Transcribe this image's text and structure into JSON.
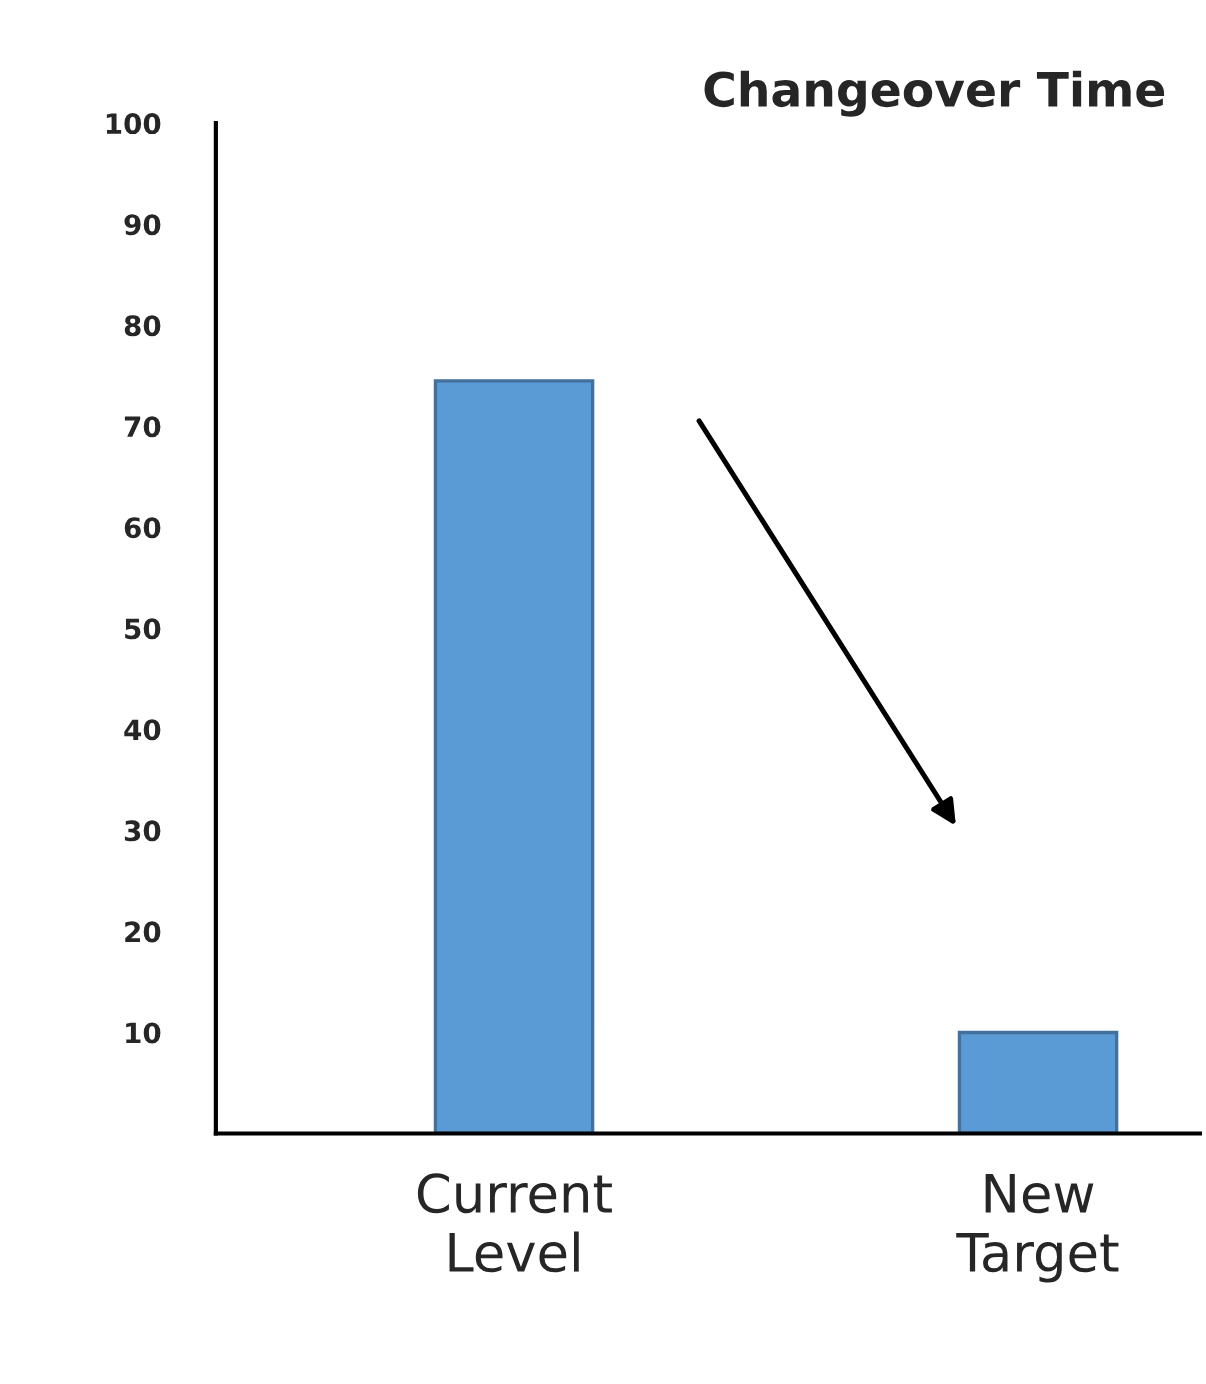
{
  "chart_data": {
    "type": "bar",
    "title": "Changeover Time",
    "categories": [
      "Current\nLevel",
      "New\nTarget"
    ],
    "values": [
      74.5,
      10
    ],
    "color": "#5b9bd5",
    "ylim": [
      0,
      100
    ],
    "yticks": [
      10,
      20,
      30,
      40,
      50,
      60,
      70,
      80,
      90,
      100
    ],
    "grid": false
  }
}
